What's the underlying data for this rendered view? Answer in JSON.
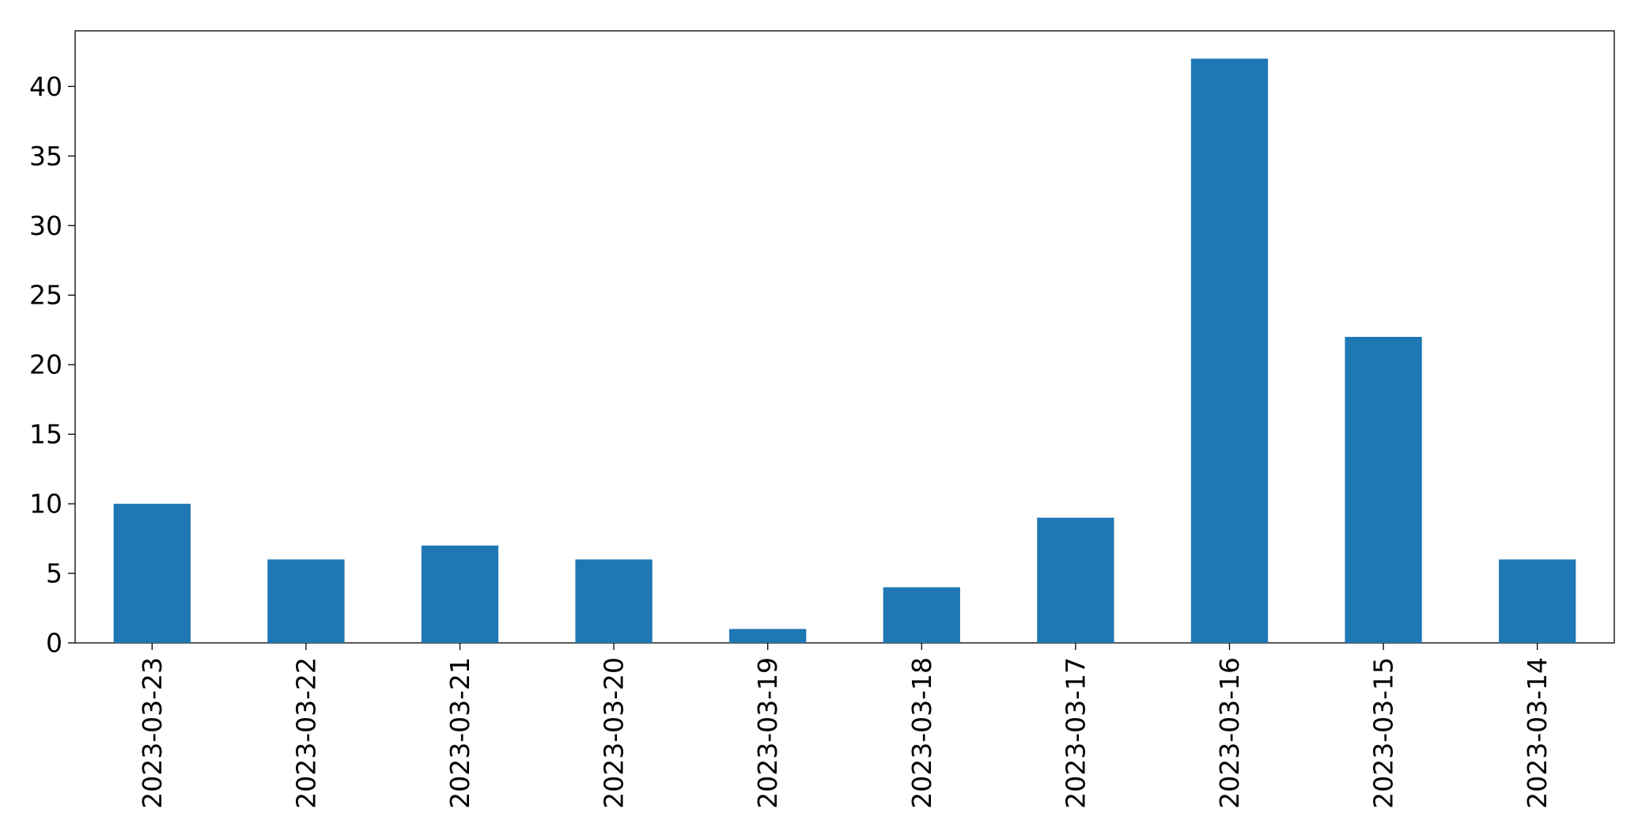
{
  "chart_data": {
    "type": "bar",
    "title": "",
    "xlabel": "",
    "ylabel": "",
    "categories": [
      "2023-03-23",
      "2023-03-22",
      "2023-03-21",
      "2023-03-20",
      "2023-03-19",
      "2023-03-18",
      "2023-03-17",
      "2023-03-16",
      "2023-03-15",
      "2023-03-14"
    ],
    "values": [
      10,
      6,
      7,
      6,
      1,
      4,
      9,
      42,
      22,
      6
    ],
    "ylim": [
      0,
      44
    ],
    "yticks": [
      "0",
      "5",
      "10",
      "15",
      "20",
      "25",
      "30",
      "35",
      "40"
    ],
    "grid": false,
    "legend": "none",
    "colors": {
      "bar": "#1f77b4"
    }
  }
}
